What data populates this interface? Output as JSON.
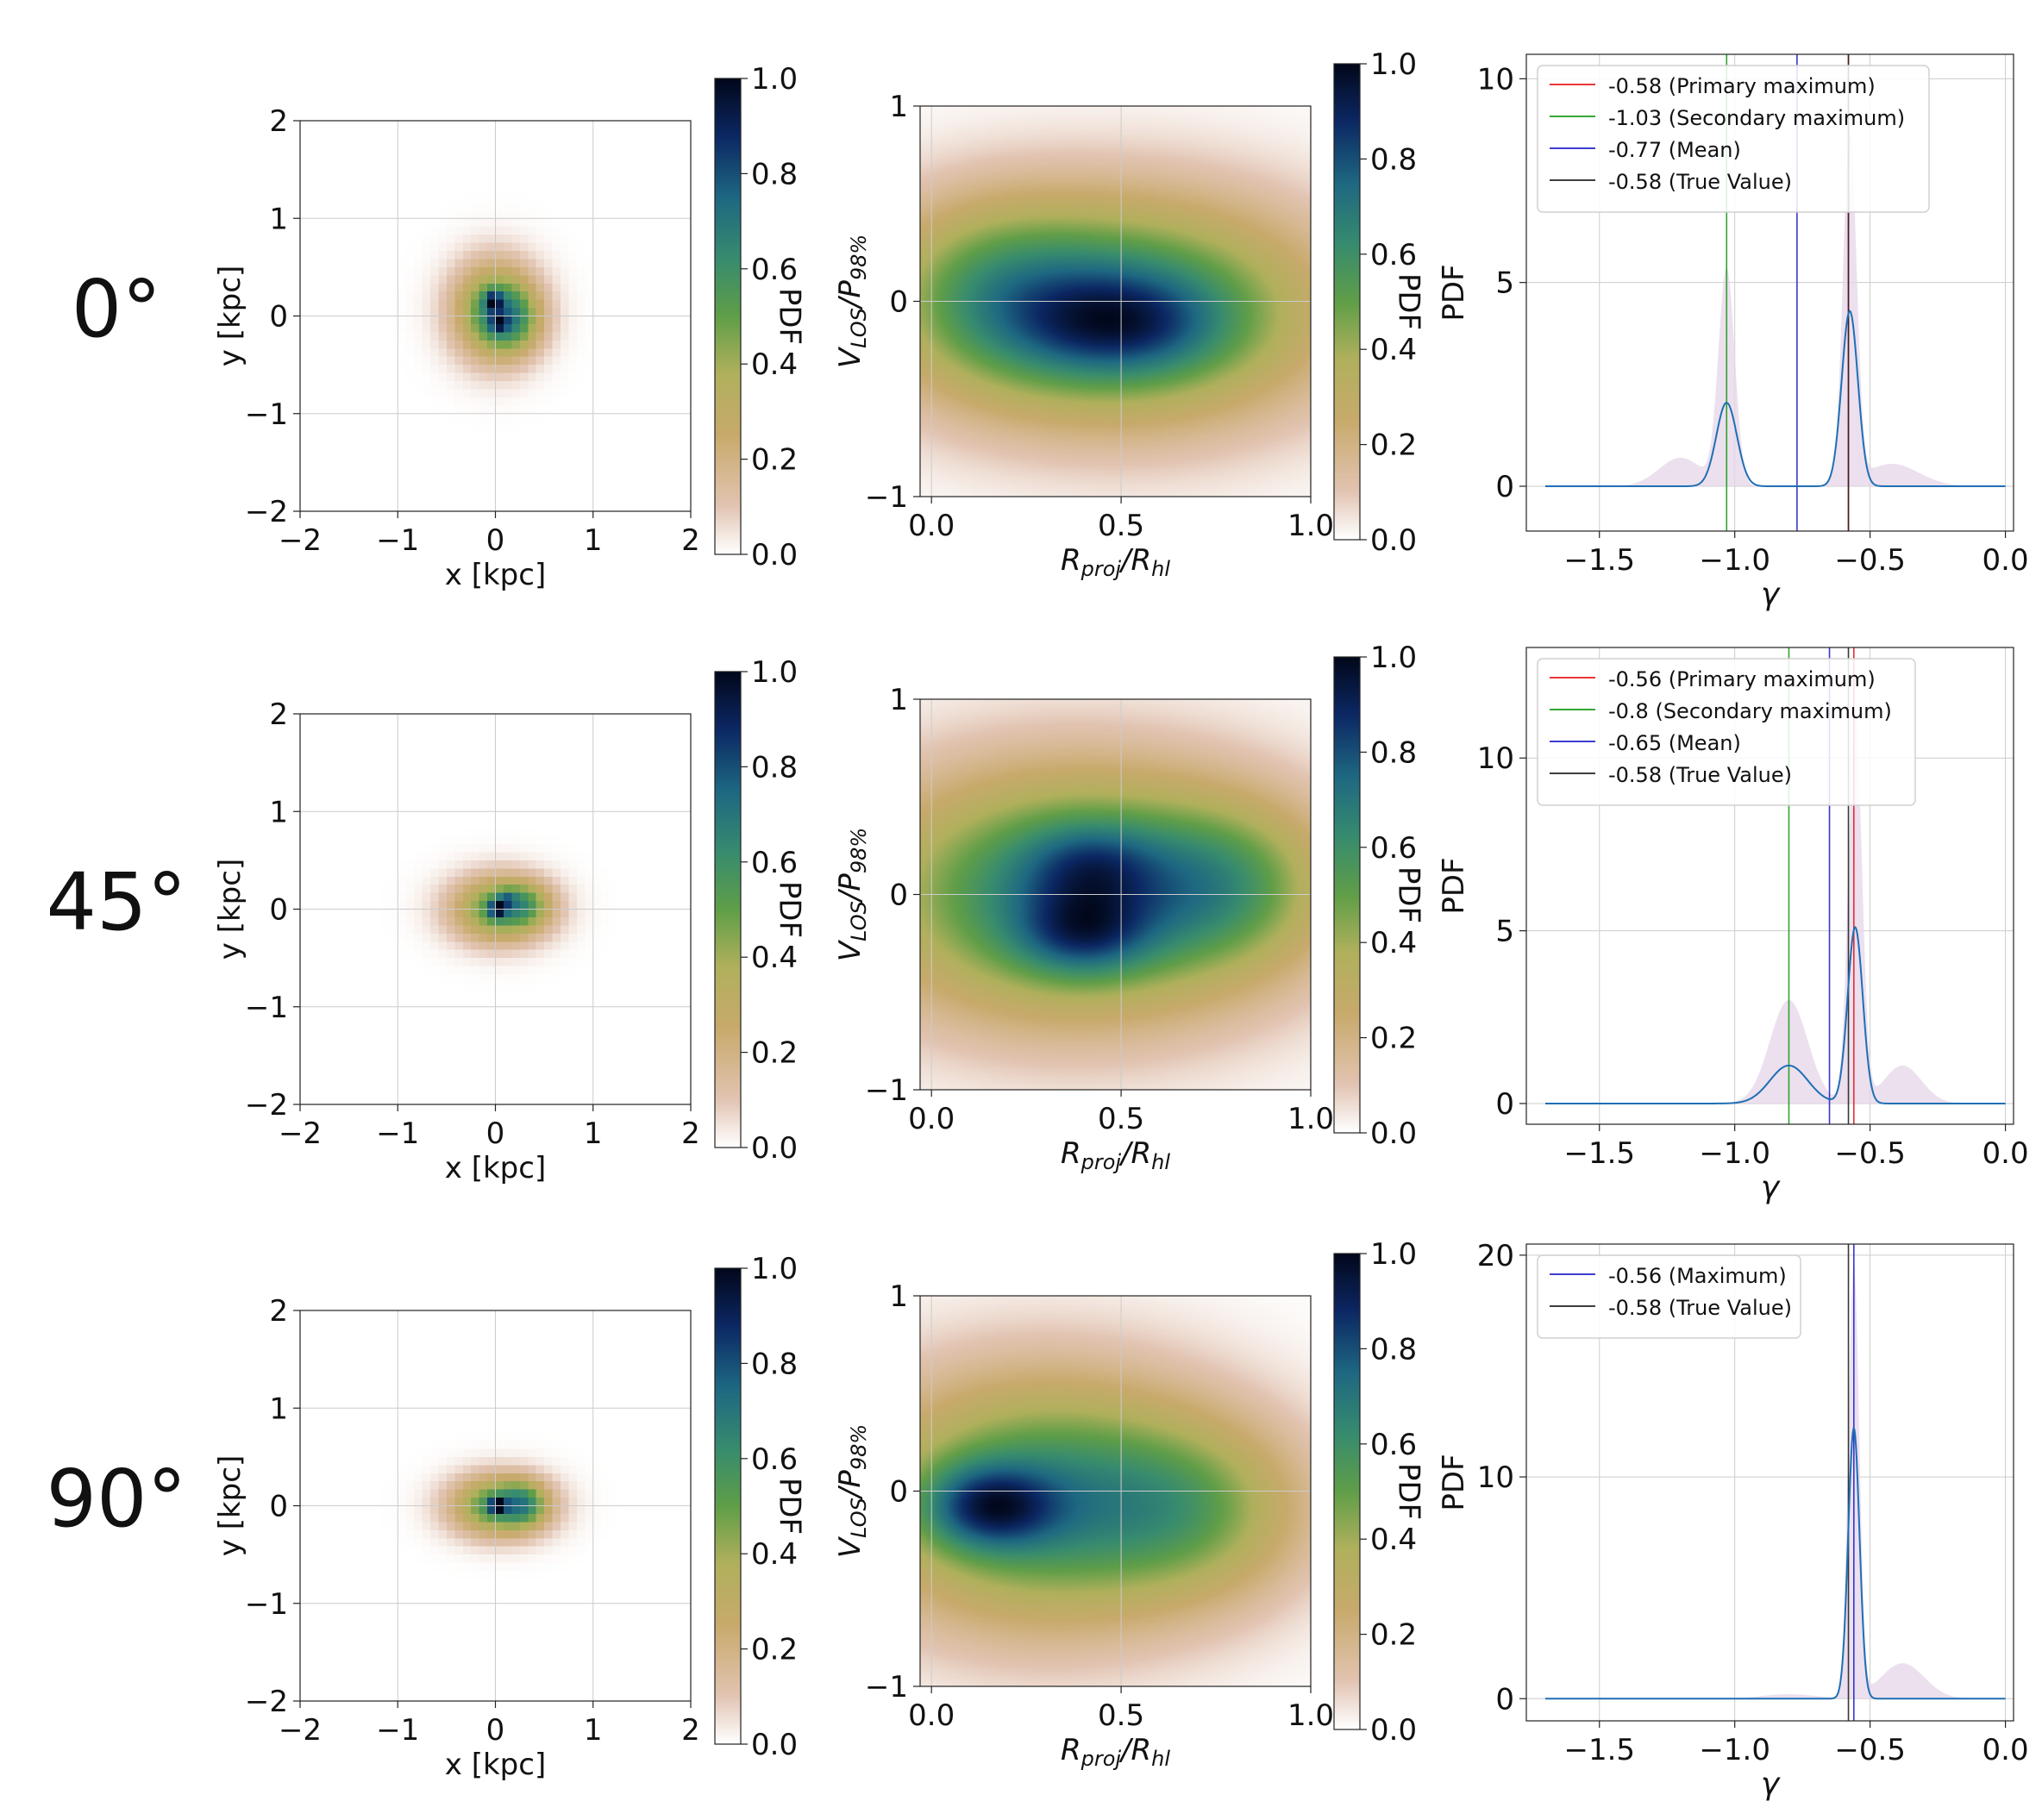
{
  "figure": {
    "labels": {
      "x_kpc": "x [kpc]",
      "y_kpc": "y [kpc]",
      "pdf": "PDF",
      "gamma": "γ",
      "vlos_main": "V",
      "vlos_sub": "LOS",
      "vlos_slash": "/P",
      "vlos_sub2": "98%",
      "rproj_main": "R",
      "rproj_sub": "proj",
      "rproj_slash": "/R",
      "rproj_sub2": "hl"
    },
    "rows": [
      {
        "angle_label": "0°"
      },
      {
        "angle_label": "45°"
      },
      {
        "angle_label": "90°"
      }
    ]
  },
  "chart_data": [
    {
      "type": "heatmap",
      "panel": "stellar-map",
      "title": "",
      "xlabel": "x [kpc]",
      "ylabel": "y [kpc]",
      "xlim": [
        -2,
        2
      ],
      "ylim": [
        -2,
        2
      ],
      "xticks": [
        -2,
        -1,
        0,
        1,
        2
      ],
      "yticks": [
        -2,
        -1,
        0,
        1,
        2
      ],
      "colorbar": {
        "label": "PDF",
        "range": [
          0,
          1
        ],
        "ticks": [
          0.0,
          0.2,
          0.4,
          0.6,
          0.8,
          1.0
        ]
      },
      "rows": [
        {
          "angle": "0°",
          "blobs": [
            {
              "x": 0.0,
              "y": 0.05,
              "sx": 0.28,
              "sy": 0.32,
              "w": 0.9
            },
            {
              "x": 0.18,
              "y": -0.05,
              "sx": 0.2,
              "sy": 0.22,
              "w": 0.45
            },
            {
              "x": -0.02,
              "y": 0.15,
              "sx": 0.06,
              "sy": 0.07,
              "w": 0.7
            },
            {
              "x": 0.03,
              "y": -0.08,
              "sx": 0.06,
              "sy": 0.06,
              "w": 0.55
            }
          ]
        },
        {
          "angle": "45°",
          "blobs": [
            {
              "x": 0.05,
              "y": 0.0,
              "sx": 0.32,
              "sy": 0.22,
              "w": 0.9
            },
            {
              "x": 0.3,
              "y": 0.05,
              "sx": 0.18,
              "sy": 0.15,
              "w": 0.4
            },
            {
              "x": 0.02,
              "y": 0.0,
              "sx": 0.06,
              "sy": 0.06,
              "w": 0.85
            },
            {
              "x": 0.12,
              "y": 0.1,
              "sx": 0.06,
              "sy": 0.05,
              "w": 0.35
            }
          ]
        },
        {
          "angle": "90°",
          "blobs": [
            {
              "x": 0.05,
              "y": 0.0,
              "sx": 0.32,
              "sy": 0.2,
              "w": 0.85
            },
            {
              "x": 0.3,
              "y": 0.02,
              "sx": 0.15,
              "sy": 0.15,
              "w": 0.4
            },
            {
              "x": 0.02,
              "y": 0.0,
              "sx": 0.06,
              "sy": 0.05,
              "w": 0.85
            }
          ]
        }
      ]
    },
    {
      "type": "heatmap",
      "panel": "phase-space",
      "title": "",
      "xlabel": "R_proj/R_hl",
      "ylabel": "V_LOS/P_98%",
      "xlim": [
        -0.03,
        1.0
      ],
      "ylim": [
        -1.0,
        1.0
      ],
      "xticks": [
        0.0,
        0.5,
        1.0
      ],
      "yticks": [
        -1,
        0,
        1
      ],
      "colorbar": {
        "label": "PDF",
        "range": [
          0,
          1
        ],
        "ticks": [
          0.0,
          0.2,
          0.4,
          0.6,
          0.8,
          1.0
        ]
      },
      "rows": [
        {
          "angle": "0°",
          "blobs": [
            {
              "x": 0.5,
              "y": -0.05,
              "sx": 0.35,
              "sy": 0.38,
              "w": 0.78
            },
            {
              "x": 0.5,
              "y": -0.12,
              "sx": 0.18,
              "sy": 0.18,
              "w": 0.35
            },
            {
              "x": 0.15,
              "y": 0.05,
              "sx": 0.2,
              "sy": 0.32,
              "w": 0.3
            }
          ]
        },
        {
          "angle": "45°",
          "blobs": [
            {
              "x": 0.38,
              "y": 0.0,
              "sx": 0.36,
              "sy": 0.42,
              "w": 0.75
            },
            {
              "x": 0.4,
              "y": -0.2,
              "sx": 0.12,
              "sy": 0.15,
              "w": 0.35
            },
            {
              "x": 0.42,
              "y": 0.15,
              "sx": 0.12,
              "sy": 0.15,
              "w": 0.25
            },
            {
              "x": 0.78,
              "y": 0.05,
              "sx": 0.18,
              "sy": 0.28,
              "w": 0.3
            }
          ]
        },
        {
          "angle": "90°",
          "blobs": [
            {
              "x": 0.3,
              "y": -0.05,
              "sx": 0.32,
              "sy": 0.42,
              "w": 0.7
            },
            {
              "x": 0.15,
              "y": -0.08,
              "sx": 0.12,
              "sy": 0.15,
              "w": 0.5
            },
            {
              "x": 0.7,
              "y": -0.1,
              "sx": 0.2,
              "sy": 0.3,
              "w": 0.3
            }
          ]
        }
      ]
    },
    {
      "type": "line",
      "panel": "gamma-pdf",
      "xlabel": "γ",
      "ylabel": "PDF",
      "xlim": [
        -1.77,
        0.03
      ],
      "xticks": [
        -1.5,
        -1.0,
        -0.5,
        0.0
      ],
      "rows": [
        {
          "angle": "0°",
          "ylim": [
            -1.1,
            10.6
          ],
          "yticks": [
            0,
            5,
            10
          ],
          "curve": {
            "name": "gamma-pdf",
            "x_range": [
              -1.7,
              0.0
            ],
            "peaks": [
              {
                "mu": -1.03,
                "sigma": 0.038,
                "amp": 2.05
              },
              {
                "mu": -0.575,
                "sigma": 0.03,
                "amp": 4.3
              }
            ]
          },
          "shade": {
            "x_range": [
              -1.7,
              0.0
            ],
            "peaks": [
              {
                "mu": -1.03,
                "sigma": 0.03,
                "amp": 5.3
              },
              {
                "mu": -1.2,
                "sigma": 0.08,
                "amp": 0.7
              },
              {
                "mu": -0.575,
                "sigma": 0.025,
                "amp": 8.6
              },
              {
                "mu": -0.42,
                "sigma": 0.1,
                "amp": 0.55
              }
            ]
          },
          "vlines": [
            {
              "name": "primary-maximum",
              "value": -0.58,
              "label": "-0.58 (Primary maximum)",
              "color": "#e41a1c"
            },
            {
              "name": "secondary-maximum",
              "value": -1.03,
              "label": "-1.03 (Secondary maximum)",
              "color": "#1a9a1a"
            },
            {
              "name": "mean",
              "value": -0.77,
              "label": "-0.77 (Mean)",
              "color": "#2222cc"
            },
            {
              "name": "true-value",
              "value": -0.58,
              "label": "-0.58 (True Value)",
              "color": "#222222"
            }
          ]
        },
        {
          "angle": "45°",
          "ylim": [
            -0.6,
            13.2
          ],
          "yticks": [
            0,
            5,
            10
          ],
          "curve": {
            "name": "gamma-pdf",
            "x_range": [
              -1.7,
              0.0
            ],
            "peaks": [
              {
                "mu": -0.8,
                "sigma": 0.07,
                "amp": 1.1
              },
              {
                "mu": -0.555,
                "sigma": 0.028,
                "amp": 5.1
              }
            ]
          },
          "shade": {
            "x_range": [
              -1.7,
              0.0
            ],
            "peaks": [
              {
                "mu": -0.8,
                "sigma": 0.07,
                "amp": 3.0
              },
              {
                "mu": -0.555,
                "sigma": 0.025,
                "amp": 11.2
              },
              {
                "mu": -0.38,
                "sigma": 0.07,
                "amp": 1.1
              }
            ]
          },
          "vlines": [
            {
              "name": "primary-maximum",
              "value": -0.56,
              "label": "-0.56 (Primary maximum)",
              "color": "#e41a1c"
            },
            {
              "name": "secondary-maximum",
              "value": -0.8,
              "label": "-0.8 (Secondary maximum)",
              "color": "#1a9a1a"
            },
            {
              "name": "mean",
              "value": -0.65,
              "label": "-0.65 (Mean)",
              "color": "#2222cc"
            },
            {
              "name": "true-value",
              "value": -0.58,
              "label": "-0.58 (True Value)",
              "color": "#222222"
            }
          ]
        },
        {
          "angle": "90°",
          "ylim": [
            -1.0,
            20.5
          ],
          "yticks": [
            0,
            10,
            20
          ],
          "curve": {
            "name": "gamma-pdf",
            "x_range": [
              -1.7,
              0.0
            ],
            "peaks": [
              {
                "mu": -0.56,
                "sigma": 0.021,
                "amp": 12.2
              }
            ]
          },
          "shade": {
            "x_range": [
              -1.7,
              0.0
            ],
            "peaks": [
              {
                "mu": -0.56,
                "sigma": 0.02,
                "amp": 19.5
              },
              {
                "mu": -0.38,
                "sigma": 0.08,
                "amp": 1.6
              },
              {
                "mu": -0.8,
                "sigma": 0.1,
                "amp": 0.2
              }
            ]
          },
          "vlines": [
            {
              "name": "maximum",
              "value": -0.56,
              "label": "-0.56 (Maximum)",
              "color": "#2222cc"
            },
            {
              "name": "true-value",
              "value": -0.58,
              "label": "-0.58 (True Value)",
              "color": "#222222"
            }
          ]
        }
      ]
    }
  ]
}
